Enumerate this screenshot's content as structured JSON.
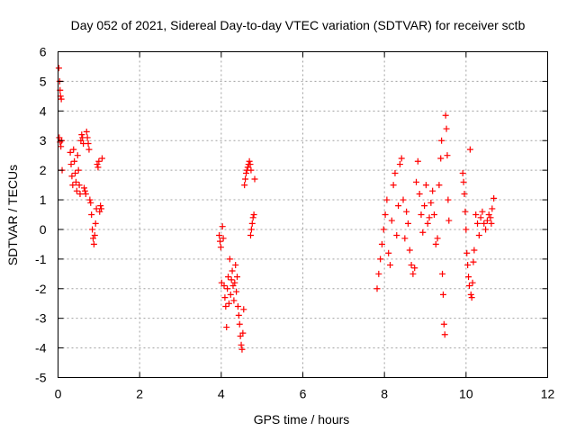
{
  "chart_data": {
    "type": "scatter",
    "title": "Day 052 of 2021, Sidereal Day-to-day VTEC variation (SDTVAR) for receiver sctb",
    "xlabel": "GPS time / hours",
    "ylabel": "SDTVAR / TECUs",
    "xlim": [
      0,
      12
    ],
    "ylim": [
      -5,
      6
    ],
    "xticks": [
      0,
      2,
      4,
      6,
      8,
      10,
      12
    ],
    "yticks": [
      -5,
      -4,
      -3,
      -2,
      -1,
      0,
      1,
      2,
      3,
      4,
      5,
      6
    ],
    "grid": true,
    "legend": "none",
    "marker": "+",
    "color": "#ff0000",
    "series": [
      {
        "name": "SDTVAR",
        "points": [
          [
            0.02,
            5.45
          ],
          [
            0.04,
            5.0
          ],
          [
            0.05,
            4.7
          ],
          [
            0.06,
            4.5
          ],
          [
            0.08,
            4.4
          ],
          [
            0.03,
            3.1
          ],
          [
            0.05,
            2.95
          ],
          [
            0.07,
            2.8
          ],
          [
            0.09,
            3.0
          ],
          [
            0.1,
            2.0
          ],
          [
            0.3,
            2.6
          ],
          [
            0.32,
            2.2
          ],
          [
            0.34,
            1.8
          ],
          [
            0.36,
            1.5
          ],
          [
            0.38,
            2.7
          ],
          [
            0.4,
            2.3
          ],
          [
            0.42,
            1.9
          ],
          [
            0.44,
            1.6
          ],
          [
            0.46,
            1.3
          ],
          [
            0.48,
            2.5
          ],
          [
            0.5,
            2.0
          ],
          [
            0.52,
            1.5
          ],
          [
            0.54,
            1.2
          ],
          [
            0.56,
            3.0
          ],
          [
            0.58,
            3.2
          ],
          [
            0.6,
            3.1
          ],
          [
            0.62,
            2.9
          ],
          [
            0.64,
            1.4
          ],
          [
            0.66,
            1.3
          ],
          [
            0.68,
            1.2
          ],
          [
            0.7,
            3.3
          ],
          [
            0.72,
            3.1
          ],
          [
            0.74,
            2.9
          ],
          [
            0.76,
            2.7
          ],
          [
            0.78,
            1.0
          ],
          [
            0.8,
            0.9
          ],
          [
            0.82,
            0.5
          ],
          [
            0.84,
            0.0
          ],
          [
            0.86,
            -0.3
          ],
          [
            0.88,
            -0.5
          ],
          [
            0.9,
            -0.2
          ],
          [
            0.92,
            0.2
          ],
          [
            0.94,
            0.7
          ],
          [
            0.96,
            2.2
          ],
          [
            0.98,
            2.1
          ],
          [
            1.0,
            2.3
          ],
          [
            1.02,
            0.6
          ],
          [
            1.04,
            0.8
          ],
          [
            1.06,
            0.7
          ],
          [
            1.08,
            2.4
          ],
          [
            3.95,
            -0.2
          ],
          [
            3.97,
            -0.4
          ],
          [
            3.99,
            -0.6
          ],
          [
            4.01,
            -1.8
          ],
          [
            4.03,
            0.1
          ],
          [
            4.05,
            -0.3
          ],
          [
            4.07,
            -1.9
          ],
          [
            4.09,
            -2.3
          ],
          [
            4.11,
            -2.6
          ],
          [
            4.13,
            -3.3
          ],
          [
            4.15,
            -2.0
          ],
          [
            4.17,
            -1.6
          ],
          [
            4.19,
            -2.5
          ],
          [
            4.21,
            -1.0
          ],
          [
            4.23,
            -2.2
          ],
          [
            4.25,
            -1.7
          ],
          [
            4.27,
            -1.4
          ],
          [
            4.29,
            -1.9
          ],
          [
            4.31,
            -2.4
          ],
          [
            4.33,
            -1.8
          ],
          [
            4.35,
            -1.2
          ],
          [
            4.37,
            -2.1
          ],
          [
            4.39,
            -1.6
          ],
          [
            4.41,
            -2.6
          ],
          [
            4.43,
            -2.9
          ],
          [
            4.45,
            -3.2
          ],
          [
            4.47,
            -3.6
          ],
          [
            4.49,
            -3.9
          ],
          [
            4.51,
            -4.05
          ],
          [
            4.53,
            -3.5
          ],
          [
            4.55,
            -2.7
          ],
          [
            4.57,
            1.5
          ],
          [
            4.59,
            1.7
          ],
          [
            4.61,
            1.9
          ],
          [
            4.63,
            2.0
          ],
          [
            4.65,
            2.1
          ],
          [
            4.67,
            2.2
          ],
          [
            4.69,
            2.3
          ],
          [
            4.71,
            2.2
          ],
          [
            4.73,
            2.0
          ],
          [
            4.72,
            -0.2
          ],
          [
            4.74,
            0.0
          ],
          [
            4.76,
            0.2
          ],
          [
            4.78,
            0.4
          ],
          [
            4.8,
            0.5
          ],
          [
            4.82,
            1.7
          ],
          [
            7.82,
            -2.0
          ],
          [
            7.86,
            -1.5
          ],
          [
            7.9,
            -1.0
          ],
          [
            7.94,
            -0.5
          ],
          [
            7.98,
            0.0
          ],
          [
            8.02,
            0.5
          ],
          [
            8.06,
            1.0
          ],
          [
            8.1,
            -0.8
          ],
          [
            8.14,
            -1.2
          ],
          [
            8.18,
            0.3
          ],
          [
            8.22,
            1.5
          ],
          [
            8.26,
            1.9
          ],
          [
            8.3,
            -0.2
          ],
          [
            8.34,
            0.8
          ],
          [
            8.38,
            2.2
          ],
          [
            8.42,
            2.4
          ],
          [
            8.46,
            1.0
          ],
          [
            8.5,
            -0.3
          ],
          [
            8.54,
            0.6
          ],
          [
            8.58,
            0.2
          ],
          [
            8.62,
            -0.7
          ],
          [
            8.66,
            -1.2
          ],
          [
            8.7,
            -1.5
          ],
          [
            8.74,
            -1.3
          ],
          [
            8.78,
            1.6
          ],
          [
            8.82,
            2.3
          ],
          [
            8.86,
            1.2
          ],
          [
            8.9,
            0.5
          ],
          [
            8.94,
            -0.1
          ],
          [
            8.98,
            0.8
          ],
          [
            9.02,
            1.5
          ],
          [
            9.06,
            0.2
          ],
          [
            9.1,
            0.4
          ],
          [
            9.14,
            0.9
          ],
          [
            9.18,
            1.3
          ],
          [
            9.22,
            0.5
          ],
          [
            9.26,
            -0.5
          ],
          [
            9.3,
            -0.3
          ],
          [
            9.34,
            1.5
          ],
          [
            9.38,
            2.4
          ],
          [
            9.4,
            3.0
          ],
          [
            9.42,
            -1.5
          ],
          [
            9.44,
            -2.2
          ],
          [
            9.46,
            -3.2
          ],
          [
            9.48,
            -3.55
          ],
          [
            9.5,
            3.85
          ],
          [
            9.52,
            3.4
          ],
          [
            9.54,
            2.5
          ],
          [
            9.56,
            1.0
          ],
          [
            9.58,
            0.3
          ],
          [
            9.92,
            1.9
          ],
          [
            9.94,
            1.6
          ],
          [
            9.96,
            1.2
          ],
          [
            9.98,
            0.6
          ],
          [
            10.0,
            0.0
          ],
          [
            10.02,
            -0.8
          ],
          [
            10.04,
            -1.2
          ],
          [
            10.06,
            -1.6
          ],
          [
            10.08,
            -1.9
          ],
          [
            10.1,
            2.7
          ],
          [
            10.12,
            -2.2
          ],
          [
            10.14,
            -2.3
          ],
          [
            10.16,
            -1.8
          ],
          [
            10.18,
            -1.1
          ],
          [
            10.2,
            -0.7
          ],
          [
            10.24,
            0.5
          ],
          [
            10.28,
            0.2
          ],
          [
            10.32,
            -0.2
          ],
          [
            10.36,
            0.4
          ],
          [
            10.4,
            0.6
          ],
          [
            10.44,
            0.2
          ],
          [
            10.48,
            0.0
          ],
          [
            10.52,
            0.3
          ],
          [
            10.56,
            0.5
          ],
          [
            10.6,
            0.4
          ],
          [
            10.62,
            0.2
          ],
          [
            10.64,
            0.7
          ],
          [
            10.68,
            1.05
          ]
        ]
      }
    ]
  }
}
